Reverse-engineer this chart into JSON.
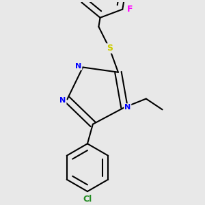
{
  "bg_color": "#e8e8e8",
  "bond_color": "#000000",
  "bond_width": 1.5,
  "atom_colors": {
    "N": "#0000ff",
    "S": "#cccc00",
    "F": "#ff00ff",
    "Cl": "#228B22",
    "C": "#000000"
  }
}
